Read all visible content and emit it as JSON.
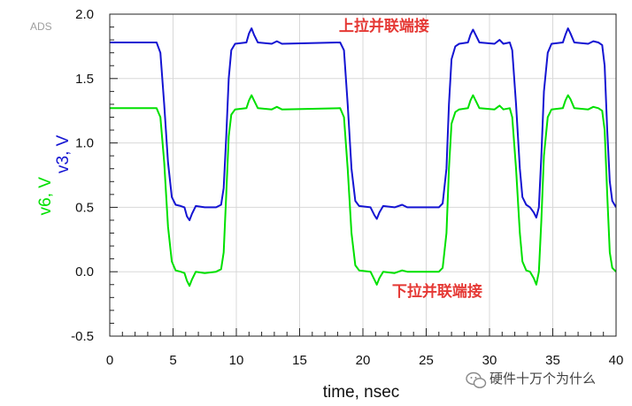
{
  "tool_tag": "ADS",
  "watermark": {
    "text": "硬件十万个为什么"
  },
  "chart_data": {
    "type": "line",
    "xlabel": "time, nsec",
    "ylabel_parts": [
      {
        "text": "v6, V",
        "color": "#00e000"
      },
      {
        "text": "v3, V",
        "color": "#1414d2"
      }
    ],
    "xlim": [
      0,
      40
    ],
    "ylim": [
      -0.5,
      2.0
    ],
    "x_ticks": [
      0,
      5,
      10,
      15,
      20,
      25,
      30,
      35,
      40
    ],
    "y_ticks": [
      -0.5,
      0.0,
      0.5,
      1.0,
      1.5,
      2.0
    ],
    "y_tick_labels": [
      "-0.5",
      "0.0",
      "0.5",
      "1.0",
      "1.5",
      "2.0"
    ],
    "grid": true,
    "annotations": [
      {
        "text": "上拉并联端接",
        "x": 18.1,
        "y": 1.87
      },
      {
        "text": "下拉并联端接",
        "x": 22.3,
        "y": -0.19
      }
    ],
    "series": [
      {
        "name": "v3",
        "color": "#1414d2",
        "points": [
          [
            0,
            1.78
          ],
          [
            3.7,
            1.78
          ],
          [
            4.0,
            1.7
          ],
          [
            4.3,
            1.3
          ],
          [
            4.6,
            0.85
          ],
          [
            4.9,
            0.58
          ],
          [
            5.2,
            0.52
          ],
          [
            5.6,
            0.51
          ],
          [
            5.9,
            0.5
          ],
          [
            6.1,
            0.43
          ],
          [
            6.3,
            0.4
          ],
          [
            6.5,
            0.45
          ],
          [
            6.8,
            0.51
          ],
          [
            7.5,
            0.5
          ],
          [
            8.4,
            0.5
          ],
          [
            8.8,
            0.52
          ],
          [
            9.0,
            0.65
          ],
          [
            9.2,
            1.05
          ],
          [
            9.4,
            1.5
          ],
          [
            9.6,
            1.72
          ],
          [
            9.9,
            1.77
          ],
          [
            10.8,
            1.78
          ],
          [
            11.0,
            1.85
          ],
          [
            11.2,
            1.89
          ],
          [
            11.4,
            1.84
          ],
          [
            11.7,
            1.78
          ],
          [
            12.8,
            1.77
          ],
          [
            13.2,
            1.79
          ],
          [
            13.6,
            1.77
          ],
          [
            18.2,
            1.78
          ],
          [
            18.5,
            1.72
          ],
          [
            18.8,
            1.3
          ],
          [
            19.1,
            0.8
          ],
          [
            19.4,
            0.55
          ],
          [
            19.7,
            0.51
          ],
          [
            20.6,
            0.5
          ],
          [
            20.9,
            0.44
          ],
          [
            21.1,
            0.41
          ],
          [
            21.3,
            0.46
          ],
          [
            21.6,
            0.51
          ],
          [
            22.5,
            0.5
          ],
          [
            23.1,
            0.52
          ],
          [
            23.5,
            0.5
          ],
          [
            26.0,
            0.5
          ],
          [
            26.3,
            0.53
          ],
          [
            26.6,
            0.8
          ],
          [
            26.8,
            1.3
          ],
          [
            27.0,
            1.65
          ],
          [
            27.3,
            1.75
          ],
          [
            27.6,
            1.77
          ],
          [
            28.3,
            1.78
          ],
          [
            28.5,
            1.84
          ],
          [
            28.7,
            1.88
          ],
          [
            28.9,
            1.84
          ],
          [
            29.2,
            1.78
          ],
          [
            30.4,
            1.77
          ],
          [
            30.8,
            1.8
          ],
          [
            31.1,
            1.77
          ],
          [
            31.6,
            1.78
          ],
          [
            31.8,
            1.72
          ],
          [
            32.1,
            1.3
          ],
          [
            32.4,
            0.8
          ],
          [
            32.6,
            0.58
          ],
          [
            32.9,
            0.52
          ],
          [
            33.2,
            0.5
          ],
          [
            33.5,
            0.46
          ],
          [
            33.7,
            0.42
          ],
          [
            33.9,
            0.5
          ],
          [
            34.1,
            0.9
          ],
          [
            34.3,
            1.4
          ],
          [
            34.6,
            1.7
          ],
          [
            34.9,
            1.77
          ],
          [
            35.8,
            1.78
          ],
          [
            36.0,
            1.84
          ],
          [
            36.2,
            1.89
          ],
          [
            36.4,
            1.85
          ],
          [
            36.7,
            1.78
          ],
          [
            37.8,
            1.77
          ],
          [
            38.2,
            1.79
          ],
          [
            38.6,
            1.78
          ],
          [
            38.9,
            1.76
          ],
          [
            39.1,
            1.6
          ],
          [
            39.3,
            1.1
          ],
          [
            39.5,
            0.7
          ],
          [
            39.7,
            0.55
          ],
          [
            40.0,
            0.5
          ]
        ]
      },
      {
        "name": "v6",
        "color": "#00e000",
        "points": [
          [
            0,
            1.27
          ],
          [
            3.7,
            1.27
          ],
          [
            4.0,
            1.2
          ],
          [
            4.3,
            0.85
          ],
          [
            4.6,
            0.35
          ],
          [
            4.9,
            0.08
          ],
          [
            5.2,
            0.01
          ],
          [
            5.6,
            0.0
          ],
          [
            5.9,
            -0.01
          ],
          [
            6.1,
            -0.07
          ],
          [
            6.3,
            -0.11
          ],
          [
            6.5,
            -0.06
          ],
          [
            6.8,
            0.0
          ],
          [
            7.5,
            -0.01
          ],
          [
            8.4,
            0.0
          ],
          [
            8.8,
            0.02
          ],
          [
            9.0,
            0.15
          ],
          [
            9.2,
            0.6
          ],
          [
            9.4,
            1.05
          ],
          [
            9.6,
            1.22
          ],
          [
            9.9,
            1.26
          ],
          [
            10.8,
            1.27
          ],
          [
            11.0,
            1.33
          ],
          [
            11.2,
            1.37
          ],
          [
            11.4,
            1.33
          ],
          [
            11.7,
            1.27
          ],
          [
            12.8,
            1.26
          ],
          [
            13.2,
            1.28
          ],
          [
            13.6,
            1.26
          ],
          [
            18.2,
            1.27
          ],
          [
            18.5,
            1.2
          ],
          [
            18.8,
            0.8
          ],
          [
            19.1,
            0.3
          ],
          [
            19.4,
            0.05
          ],
          [
            19.7,
            0.01
          ],
          [
            20.6,
            0.0
          ],
          [
            20.9,
            -0.06
          ],
          [
            21.1,
            -0.1
          ],
          [
            21.3,
            -0.05
          ],
          [
            21.6,
            0.0
          ],
          [
            22.5,
            -0.01
          ],
          [
            23.1,
            0.01
          ],
          [
            23.5,
            0.0
          ],
          [
            26.0,
            0.0
          ],
          [
            26.3,
            0.03
          ],
          [
            26.6,
            0.3
          ],
          [
            26.8,
            0.8
          ],
          [
            27.0,
            1.15
          ],
          [
            27.3,
            1.24
          ],
          [
            27.6,
            1.26
          ],
          [
            28.3,
            1.27
          ],
          [
            28.5,
            1.33
          ],
          [
            28.7,
            1.37
          ],
          [
            28.9,
            1.33
          ],
          [
            29.2,
            1.27
          ],
          [
            30.4,
            1.26
          ],
          [
            30.8,
            1.29
          ],
          [
            31.1,
            1.26
          ],
          [
            31.6,
            1.27
          ],
          [
            31.8,
            1.2
          ],
          [
            32.1,
            0.8
          ],
          [
            32.4,
            0.3
          ],
          [
            32.6,
            0.08
          ],
          [
            32.9,
            0.01
          ],
          [
            33.2,
            0.0
          ],
          [
            33.5,
            -0.05
          ],
          [
            33.7,
            -0.1
          ],
          [
            33.9,
            0.0
          ],
          [
            34.1,
            0.4
          ],
          [
            34.3,
            0.9
          ],
          [
            34.6,
            1.2
          ],
          [
            34.9,
            1.26
          ],
          [
            35.8,
            1.27
          ],
          [
            36.0,
            1.33
          ],
          [
            36.2,
            1.37
          ],
          [
            36.4,
            1.34
          ],
          [
            36.7,
            1.27
          ],
          [
            37.8,
            1.26
          ],
          [
            38.2,
            1.28
          ],
          [
            38.6,
            1.27
          ],
          [
            38.9,
            1.25
          ],
          [
            39.1,
            1.1
          ],
          [
            39.3,
            0.6
          ],
          [
            39.5,
            0.15
          ],
          [
            39.7,
            0.03
          ],
          [
            40.0,
            0.0
          ]
        ]
      }
    ]
  }
}
